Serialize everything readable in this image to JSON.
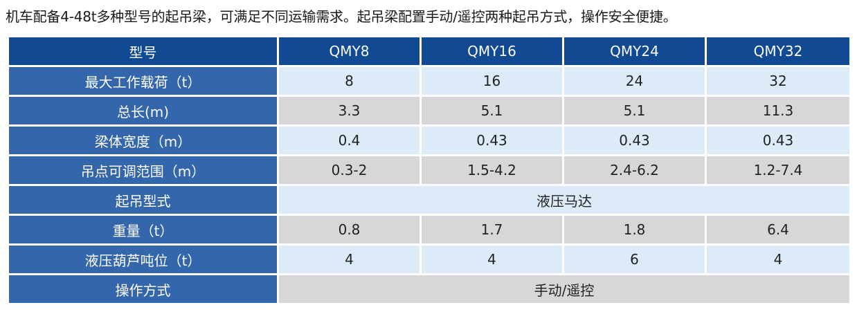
{
  "intro_text": "机车配备4-48t多种型号的起吊梁，可满足不同运输需求。起吊梁配置手动/遥控两种起吊方式，操作安全便捷。",
  "table": {
    "header": {
      "label": "型号",
      "models": [
        "QMY8",
        "QMY16",
        "QMY24",
        "QMY32"
      ]
    },
    "rows": [
      {
        "label": "最大工作载荷（t）",
        "values": [
          "8",
          "16",
          "24",
          "32"
        ]
      },
      {
        "label": "总长(m)",
        "values": [
          "3.3",
          "5.1",
          "5.1",
          "11.3"
        ]
      },
      {
        "label": "梁体宽度（m）",
        "values": [
          "0.4",
          "0.43",
          "0.43",
          "0.43"
        ]
      },
      {
        "label": "吊点可调范围（m）",
        "values": [
          "0.3-2",
          "1.5-4.2",
          "2.4-6.2",
          "1.2-7.4"
        ]
      },
      {
        "label": "起吊型式",
        "merged": "液压马达"
      },
      {
        "label": "重量（t）",
        "values": [
          "0.8",
          "1.7",
          "1.8",
          "6.4"
        ]
      },
      {
        "label": "液压葫芦吨位（t）",
        "values": [
          "4",
          "4",
          "6",
          "4"
        ]
      },
      {
        "label": "操作方式",
        "merged": "手动/遥控"
      }
    ]
  },
  "colors": {
    "header_bg": "#114a93",
    "label_bg": "#3366ab",
    "row_light": "#dcebf7",
    "row_gray": "#d7d7d9"
  }
}
